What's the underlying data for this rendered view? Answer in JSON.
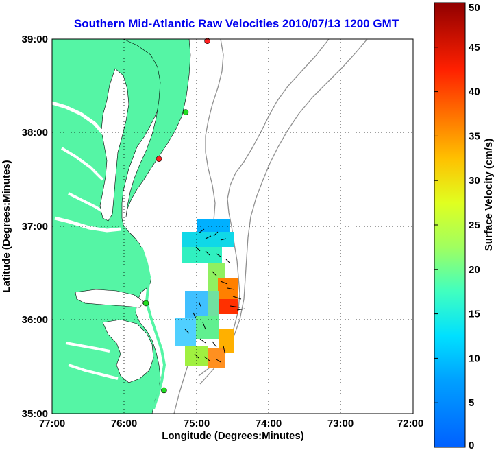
{
  "title": "Southern Mid-Atlantic Raw Velocities 2010/07/13 1200 GMT",
  "map": {
    "xlabel": "Longitude (Degrees:Minutes)",
    "ylabel": "Latitude (Degrees:Minutes)",
    "x_ticks": [
      "77:00",
      "76:00",
      "75:00",
      "74:00",
      "73:00",
      "72:00"
    ],
    "y_ticks": [
      "39:00",
      "38:00",
      "37:00",
      "36:00",
      "35:00"
    ],
    "lon_range": [
      -77,
      -72
    ],
    "lat_range": [
      35,
      39
    ],
    "land_color": "#55f5a5",
    "grid": "dotted"
  },
  "colorbar": {
    "label": "Surface Velocity (cm/s)",
    "ticks": [
      "50",
      "45",
      "40",
      "35",
      "30",
      "25",
      "20",
      "15",
      "10",
      "5",
      "0"
    ],
    "range": [
      0,
      50
    ],
    "colormap": "jet"
  },
  "stations": [
    {
      "lon": -74.85,
      "lat": 38.98,
      "color": "#ff2020"
    },
    {
      "lon": -75.15,
      "lat": 38.22,
      "color": "#22dd22"
    },
    {
      "lon": -75.52,
      "lat": 37.72,
      "color": "#ff2020"
    },
    {
      "lon": -75.7,
      "lat": 36.18,
      "color": "#22dd22"
    },
    {
      "lon": -75.45,
      "lat": 35.25,
      "color": "#22dd22"
    }
  ]
}
